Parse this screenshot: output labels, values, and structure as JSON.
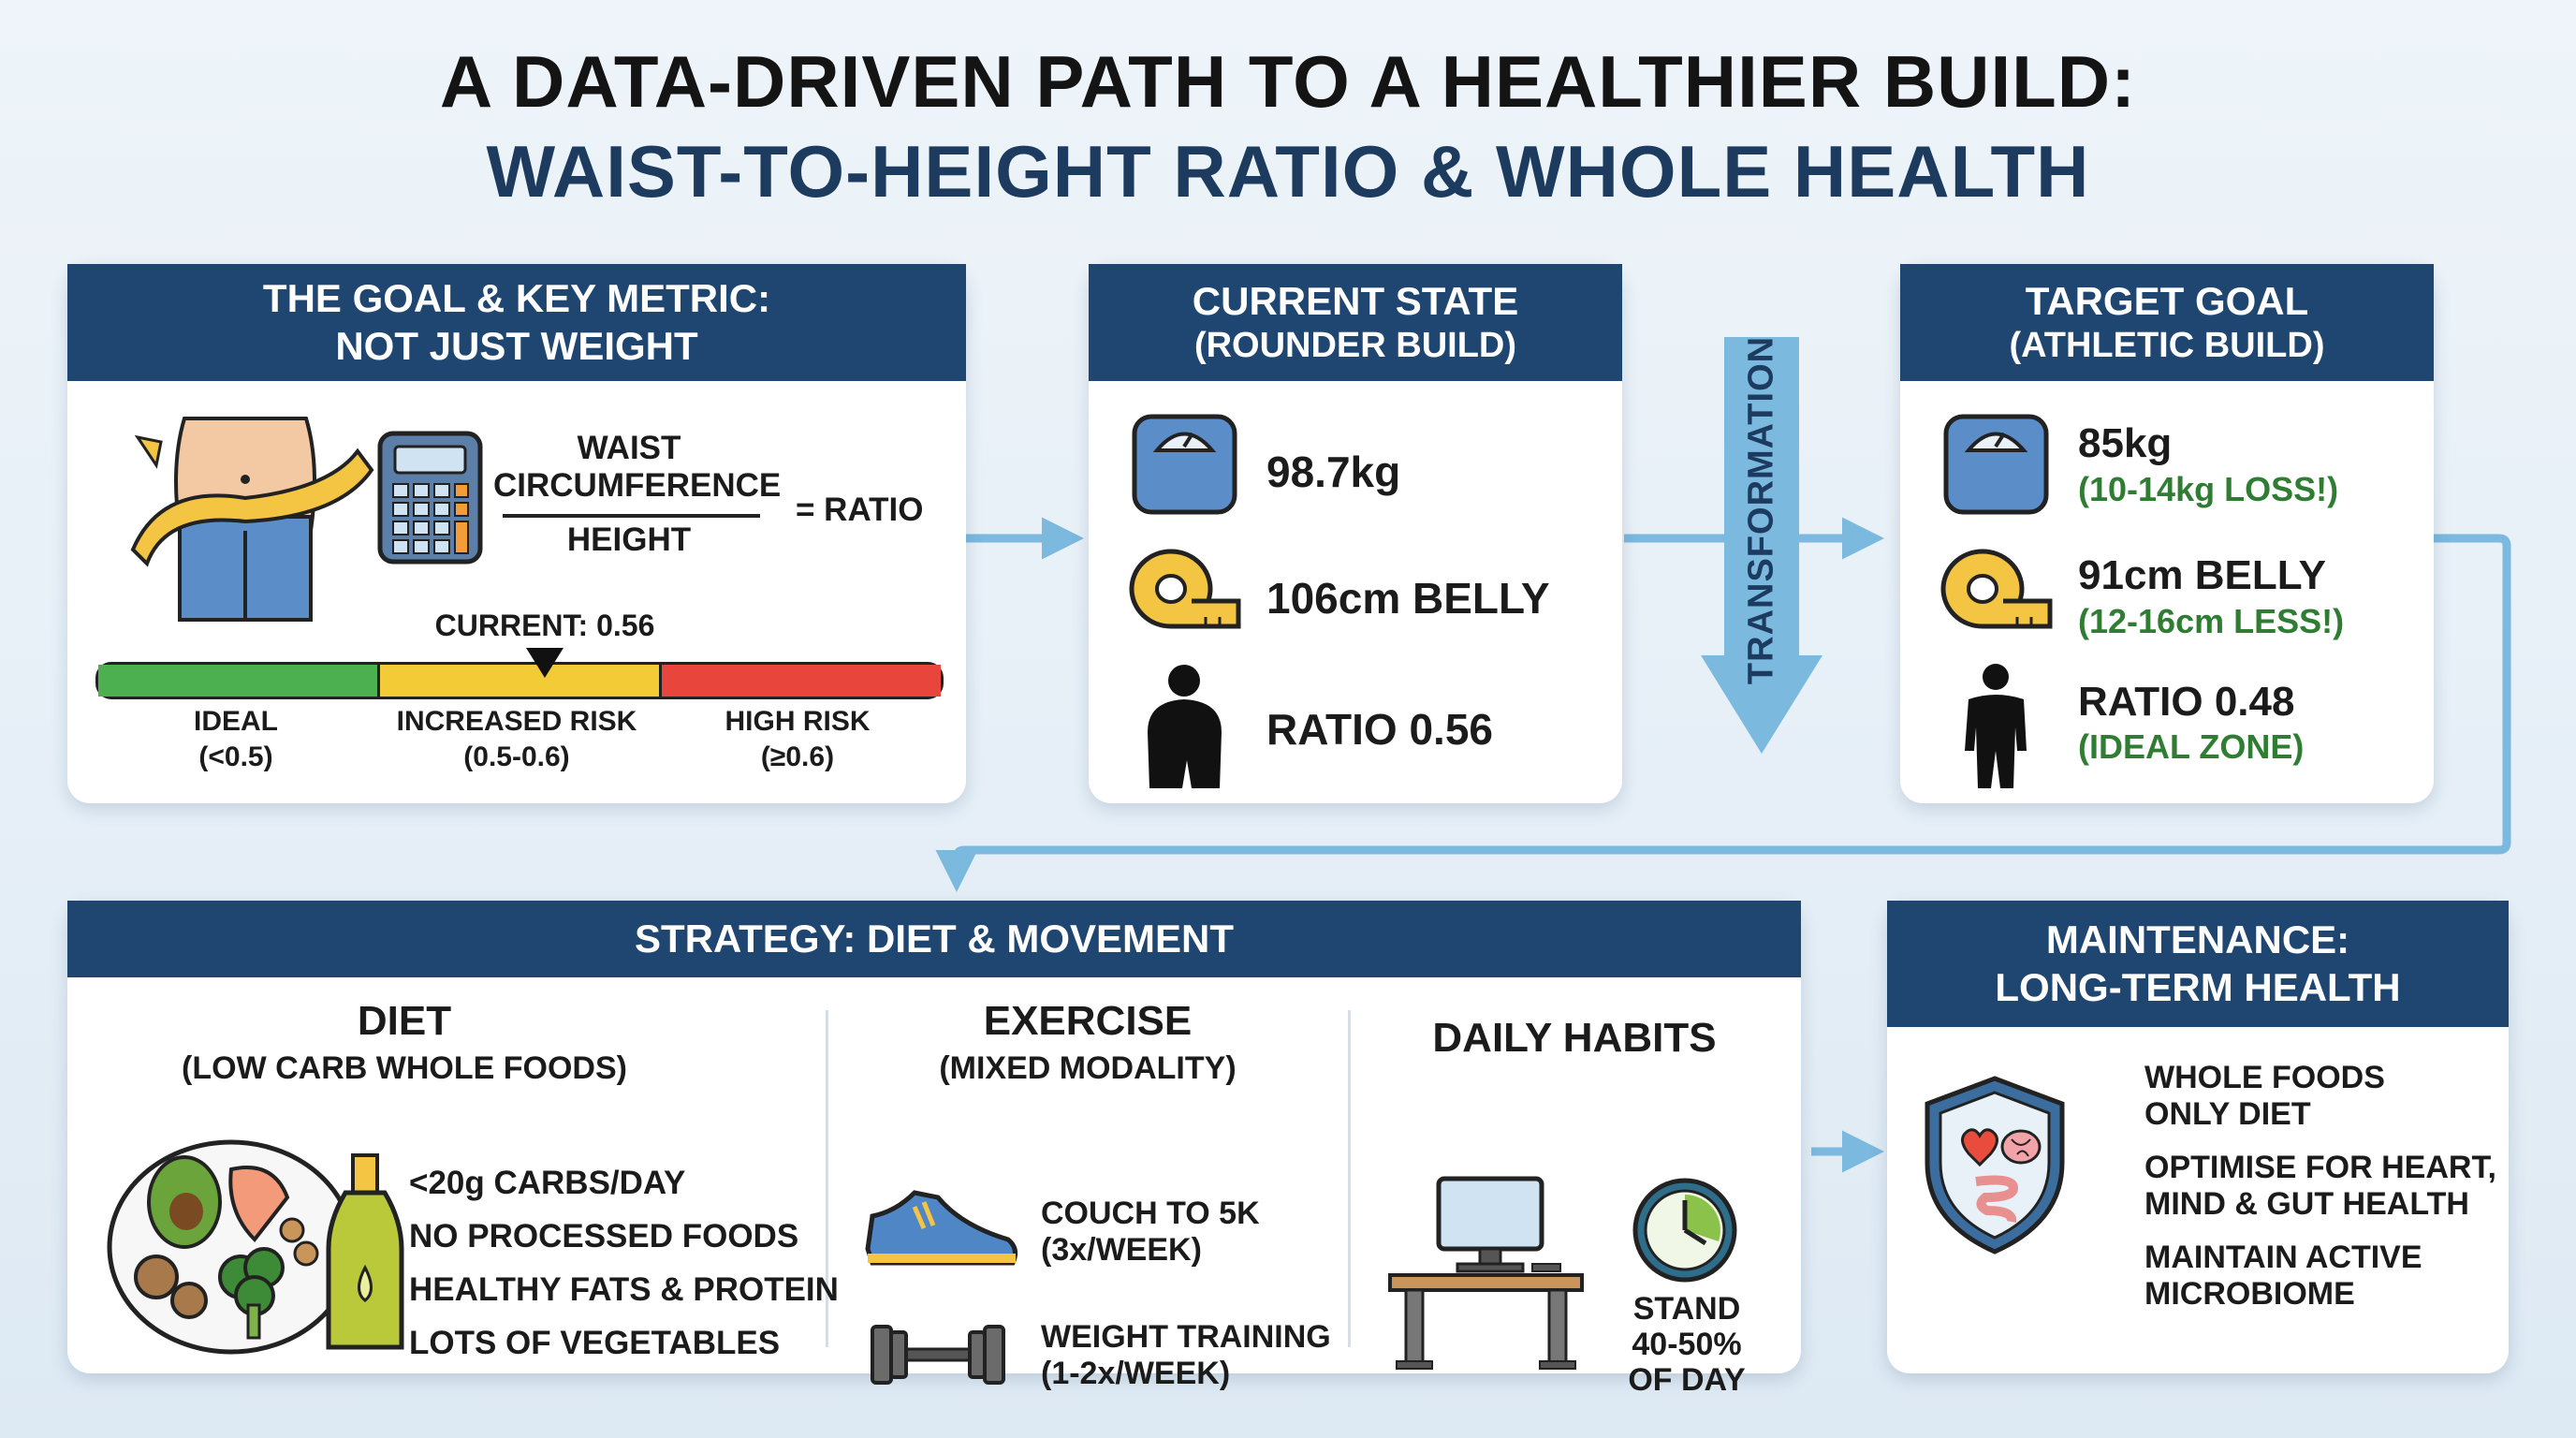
{
  "title": {
    "line1": "A DATA-DRIVEN PATH TO A HEALTHIER BUILD:",
    "line2": "WAIST-TO-HEIGHT RATIO & WHOLE HEALTH"
  },
  "goal": {
    "header1": "THE GOAL & KEY METRIC:",
    "header2": "NOT JUST WEIGHT",
    "formula": {
      "numerator1": "WAIST",
      "numerator2": "CIRCUMFERENCE",
      "denominator": "HEIGHT",
      "result": "= RATIO"
    },
    "current_label": "CURRENT: 0.56",
    "current_value": 0.56,
    "scale_min": 0.35,
    "scale_max": 0.75,
    "zones": [
      {
        "name": "IDEAL",
        "range": "(<0.5)",
        "color": "#4caf50"
      },
      {
        "name": "INCREASED RISK",
        "range": "(0.5-0.6)",
        "color": "#f2cb36"
      },
      {
        "name": "HIGH RISK",
        "range": "(≥0.6)",
        "color": "#e8453c"
      }
    ]
  },
  "current": {
    "header1": "CURRENT STATE",
    "header2": "(ROUNDER BUILD)",
    "weight": "98.7kg",
    "belly": "106cm BELLY",
    "ratio": "RATIO 0.56"
  },
  "transformation_label": "TRANSFORMATION",
  "target": {
    "header1": "TARGET GOAL",
    "header2": "(ATHLETIC BUILD)",
    "weight": "85kg",
    "weight_note": "(10-14kg LOSS!)",
    "belly": "91cm BELLY",
    "belly_note": "(12-16cm LESS!)",
    "ratio": "RATIO 0.48",
    "ratio_note": "(IDEAL ZONE)"
  },
  "strategy": {
    "header": "STRATEGY: DIET & MOVEMENT",
    "diet": {
      "title": "DIET",
      "subtitle": "(LOW CARB WHOLE FOODS)",
      "items": [
        "<20g CARBS/DAY",
        "NO PROCESSED FOODS",
        "HEALTHY FATS & PROTEIN",
        "LOTS OF VEGETABLES"
      ]
    },
    "exercise": {
      "title": "EXERCISE",
      "subtitle": "(MIXED MODALITY)",
      "items": [
        {
          "line1": "COUCH TO 5K",
          "line2": "(3x/WEEK)"
        },
        {
          "line1": "WEIGHT TRAINING",
          "line2": "(1-2x/WEEK)"
        }
      ]
    },
    "habits": {
      "title": "DAILY HABITS",
      "stand1": "STAND",
      "stand2": "40-50%",
      "stand3": "OF DAY"
    }
  },
  "maintenance": {
    "header1": "MAINTENANCE:",
    "header2": "LONG-TERM HEALTH",
    "items": [
      {
        "line1": "WHOLE FOODS",
        "line2": "ONLY DIET"
      },
      {
        "line1": "OPTIMISE FOR HEART,",
        "line2": "MIND & GUT HEALTH"
      },
      {
        "line1": "MAINTAIN ACTIVE",
        "line2": "MICROBIOME"
      }
    ]
  },
  "colors": {
    "header_navy": "#1f4670",
    "title_navy": "#1c3b5e",
    "arrow_blue": "#7cb9de",
    "note_green": "#2e7d32"
  }
}
